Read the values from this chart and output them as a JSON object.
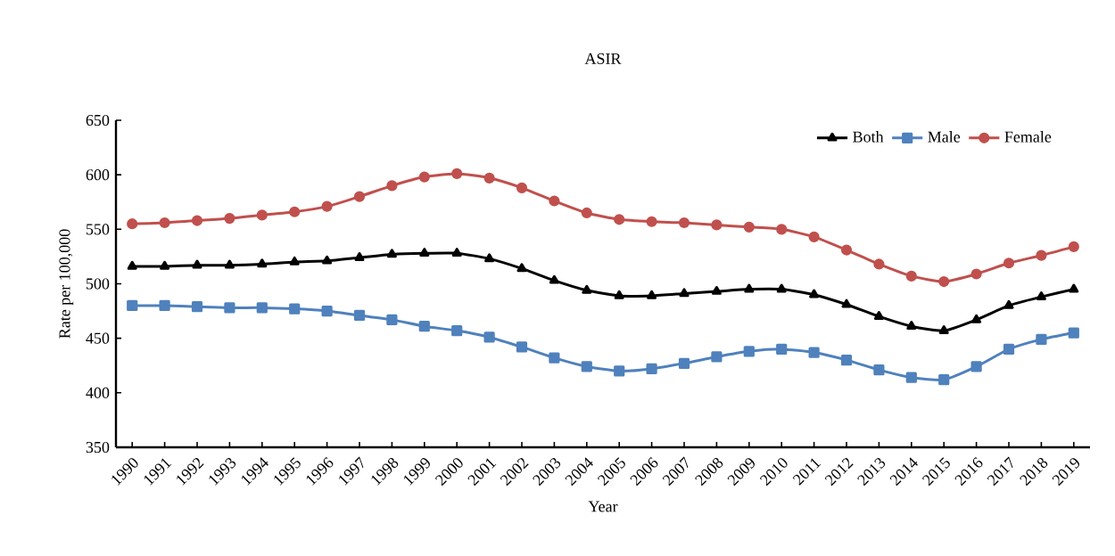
{
  "chart_data": {
    "type": "line",
    "title": "ASIR",
    "xlabel": "Year",
    "ylabel": "Rate  per  100,000",
    "categories": [
      "1990",
      "1991",
      "1992",
      "1993",
      "1994",
      "1995",
      "1996",
      "1997",
      "1998",
      "1999",
      "2000",
      "2001",
      "2002",
      "2003",
      "2004",
      "2005",
      "2006",
      "2007",
      "2008",
      "2009",
      "2010",
      "2011",
      "2012",
      "2013",
      "2014",
      "2015",
      "2016",
      "2017",
      "2018",
      "2019"
    ],
    "series": [
      {
        "name": "Both",
        "color": "#000000",
        "marker": "triangle",
        "values": [
          516,
          516,
          517,
          517,
          518,
          520,
          521,
          524,
          527,
          528,
          528,
          523,
          514,
          503,
          494,
          489,
          489,
          491,
          493,
          495,
          495,
          490,
          481,
          470,
          461,
          457,
          467,
          480,
          488,
          495
        ]
      },
      {
        "name": "Male",
        "color": "#4f81bd",
        "marker": "square",
        "values": [
          480,
          480,
          479,
          478,
          478,
          477,
          475,
          471,
          467,
          461,
          457,
          451,
          442,
          432,
          424,
          420,
          422,
          427,
          433,
          438,
          440,
          437,
          430,
          421,
          414,
          412,
          424,
          440,
          449,
          455
        ]
      },
      {
        "name": "Female",
        "color": "#c0504d",
        "marker": "circle",
        "values": [
          555,
          556,
          558,
          560,
          563,
          566,
          571,
          580,
          590,
          598,
          601,
          597,
          588,
          576,
          565,
          559,
          557,
          556,
          554,
          552,
          550,
          543,
          531,
          518,
          507,
          502,
          509,
          519,
          526,
          534
        ]
      }
    ],
    "ylim": [
      350,
      650
    ],
    "yticks": [
      350,
      400,
      450,
      500,
      550,
      600,
      650
    ],
    "grid": false,
    "legend": "top right",
    "line_style": "solid"
  }
}
